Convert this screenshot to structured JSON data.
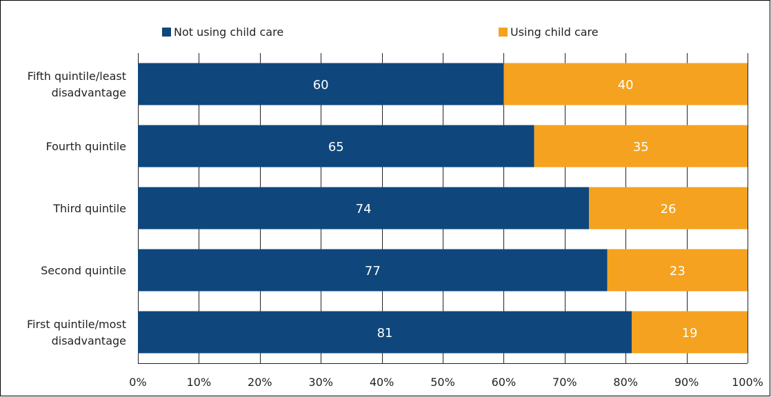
{
  "legend": {
    "series_0": "Not using child care",
    "series_1": "Using child care"
  },
  "colors": {
    "not_using": "#0f477c",
    "using": "#f4a21f"
  },
  "chart_data": {
    "type": "bar",
    "orientation": "horizontal",
    "stacked": true,
    "categories": [
      [
        "Fifth quintile/least",
        "disadvantage"
      ],
      [
        "Fourth quintile"
      ],
      [
        "Third quintile"
      ],
      [
        "Second quintile"
      ],
      [
        "First quintile/most",
        "disadvantage"
      ]
    ],
    "series": [
      {
        "name": "Not using child care",
        "values": [
          60,
          65,
          74,
          77,
          81
        ]
      },
      {
        "name": "Using child care",
        "values": [
          40,
          35,
          26,
          23,
          19
        ]
      }
    ],
    "x_ticks": [
      "0%",
      "10%",
      "20%",
      "30%",
      "40%",
      "50%",
      "60%",
      "70%",
      "80%",
      "90%",
      "100%"
    ],
    "xlim": [
      0,
      100
    ],
    "grid": "vertical",
    "legend_position": "top"
  }
}
